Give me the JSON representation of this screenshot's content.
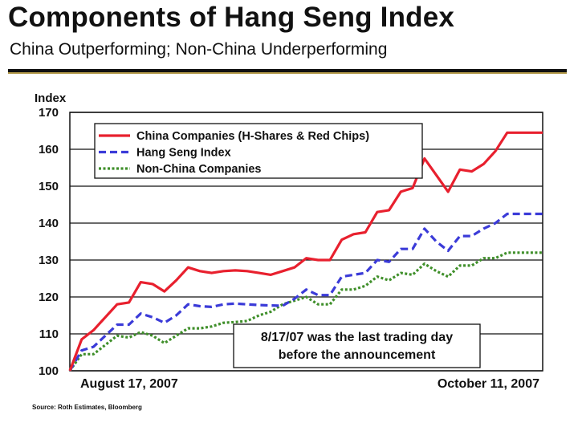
{
  "header": {
    "title": "Components of Hang Seng Index",
    "subtitle": "China Outperforming; Non-China Underperforming"
  },
  "footer": {
    "source": "Source: Roth Estimates, Bloomberg"
  },
  "chart_data": {
    "type": "line",
    "title": "",
    "xlabel": "",
    "ylabel": "Index",
    "ylim": [
      100,
      170
    ],
    "yticks": [
      100,
      110,
      120,
      130,
      140,
      150,
      160,
      170
    ],
    "xtick_labels": [
      "August 17, 2007",
      "October 11, 2007"
    ],
    "grid": true,
    "legend_position": "top-left",
    "annotation": [
      "8/17/07 was the last trading day",
      "before the announcement"
    ],
    "x": [
      0,
      1,
      2,
      3,
      4,
      5,
      6,
      7,
      8,
      9,
      10,
      11,
      12,
      13,
      14,
      15,
      16,
      17,
      18,
      19,
      20,
      21,
      22,
      23,
      24,
      25,
      26,
      27,
      28,
      29,
      30,
      31,
      32,
      33,
      34,
      35,
      36,
      37,
      38,
      39,
      40
    ],
    "series": [
      {
        "name": "China Companies (H-Shares & Red Chips)",
        "color": "#e8202e",
        "style": "solid",
        "values": [
          100,
          108.5,
          111,
          114.5,
          118,
          118.5,
          124,
          123.5,
          121.5,
          124.5,
          128,
          127,
          126.5,
          127,
          127.2,
          127,
          126.5,
          126,
          127,
          128,
          130.5,
          130,
          130,
          135.5,
          137,
          137.5,
          143,
          143.5,
          148.5,
          149.5,
          157.5,
          153,
          148.5,
          154.5,
          154,
          156,
          159.5,
          164.5,
          164.5,
          164.5,
          164.5
        ]
      },
      {
        "name": "Hang Seng Index",
        "color": "#3b3bd8",
        "style": "dashed",
        "values": [
          100,
          105.5,
          106.5,
          109.5,
          112.5,
          112.5,
          115.5,
          114.5,
          113,
          115,
          118,
          117.5,
          117.3,
          118,
          118.2,
          118,
          117.8,
          117.7,
          117.6,
          119.5,
          122,
          120.5,
          120.5,
          125.5,
          126,
          126.5,
          130,
          129.5,
          133,
          133,
          138.5,
          135,
          132.5,
          136.5,
          136.5,
          138.5,
          140,
          142.5,
          142.5,
          142.5,
          142.5
        ]
      },
      {
        "name": "Non-China Companies",
        "color": "#3f8f2a",
        "style": "dotted",
        "values": [
          100,
          104.5,
          104.5,
          107,
          109.5,
          109,
          110.5,
          109.5,
          107.5,
          109.5,
          111.5,
          111.5,
          112,
          113,
          113.2,
          113.5,
          115,
          116,
          118,
          119,
          120,
          118,
          118,
          122,
          122,
          123,
          125.5,
          124.5,
          126.5,
          126,
          129,
          127,
          125.5,
          128.5,
          128.5,
          130.5,
          130.5,
          132,
          132,
          132,
          132
        ]
      }
    ]
  }
}
